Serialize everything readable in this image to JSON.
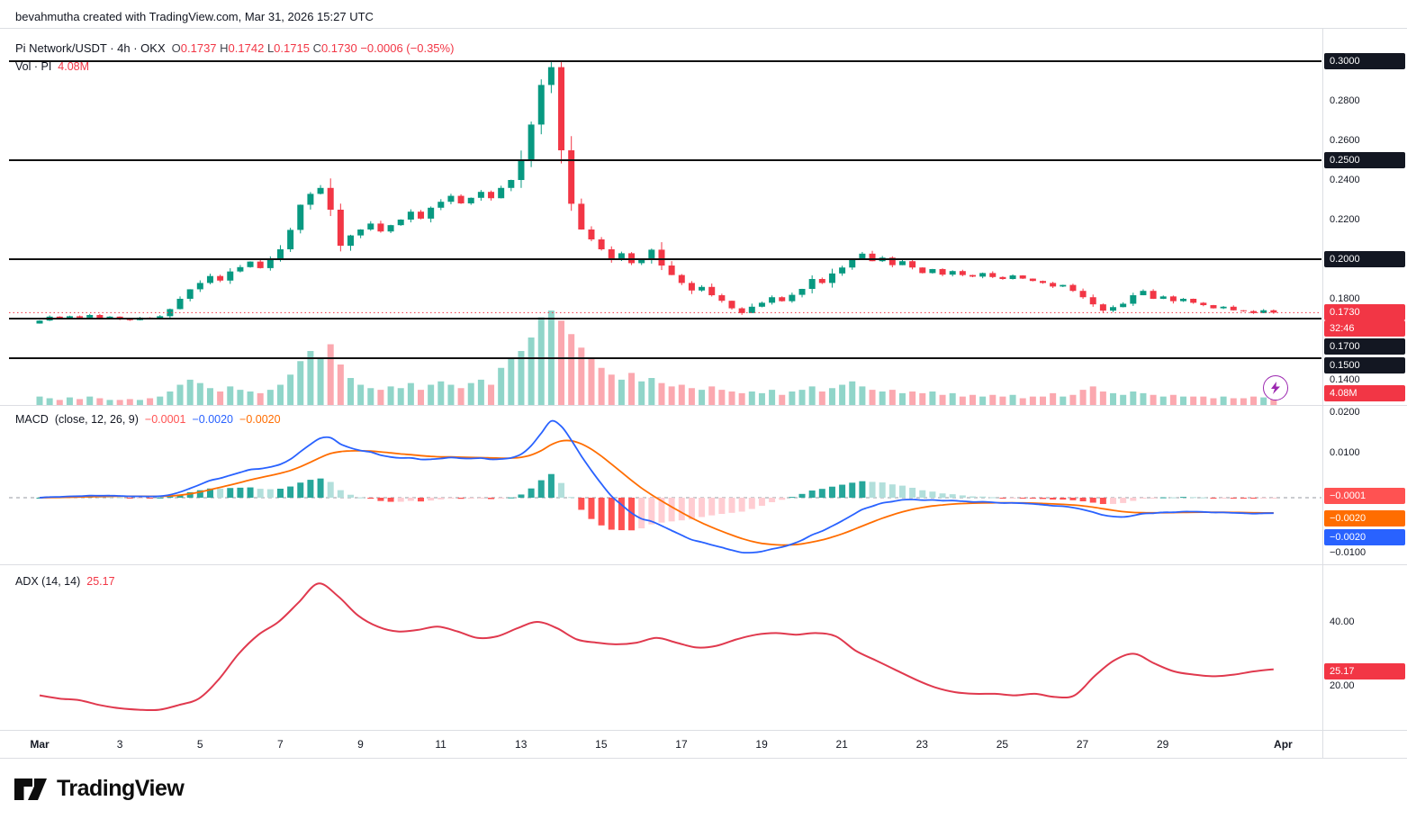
{
  "attribution": "bevahmutha created with TradingView.com, Mar 31, 2026 15:27 UTC",
  "header": {
    "title": "Pi Network/USDT · 4h · OKX",
    "ohlc": {
      "o_label": "O",
      "o": "0.1737",
      "h_label": "H",
      "h": "0.1742",
      "l_label": "L",
      "l": "0.1715",
      "c_label": "C",
      "c": "0.1730",
      "change": "−0.0006 (−0.35%)"
    },
    "volume": {
      "label": "Vol · PI",
      "value": "4.08M"
    }
  },
  "macd_legend": {
    "title": "MACD",
    "params": "(close, 12, 26, 9)",
    "hist_value": "−0.0001",
    "macd_value": "−0.0020",
    "signal_value": "−0.0020"
  },
  "adx_legend": {
    "title": "ADX (14, 14)",
    "value": "25.17"
  },
  "footer": {
    "brand": "TradingView"
  },
  "right_axis": [
    {
      "text": "0.3000",
      "y": 68,
      "style": "black"
    },
    {
      "text": "0.2800",
      "y": 112,
      "style": "plain"
    },
    {
      "text": "0.2600",
      "y": 156,
      "style": "plain"
    },
    {
      "text": "0.2500",
      "y": 178,
      "style": "black"
    },
    {
      "text": "0.2400",
      "y": 200,
      "style": "plain"
    },
    {
      "text": "0.2200",
      "y": 244,
      "style": "plain"
    },
    {
      "text": "0.2000",
      "y": 288,
      "style": "black"
    },
    {
      "text": "0.1800",
      "y": 332,
      "style": "plain"
    },
    {
      "text": "0.1730",
      "y": 347,
      "style": "red"
    },
    {
      "text": "32:46",
      "y": 365,
      "style": "red"
    },
    {
      "text": "0.1700",
      "y": 385,
      "style": "black"
    },
    {
      "text": "0.1500",
      "y": 406,
      "style": "black"
    },
    {
      "text": "0.1400",
      "y": 422,
      "style": "plain"
    },
    {
      "text": "4.08M",
      "y": 437,
      "style": "red"
    },
    {
      "text": "0.0200",
      "y": 458,
      "style": "plain"
    },
    {
      "text": "0.0100",
      "y": 503,
      "style": "plain"
    },
    {
      "text": "−0.0001",
      "y": 551,
      "style": "pink"
    },
    {
      "text": "−0.0020",
      "y": 576,
      "style": "orange"
    },
    {
      "text": "−0.0020",
      "y": 597,
      "style": "blue"
    },
    {
      "text": "−0.0100",
      "y": 614,
      "style": "plain"
    },
    {
      "text": "40.00",
      "y": 691,
      "style": "plain"
    },
    {
      "text": "25.17",
      "y": 746,
      "style": "red"
    },
    {
      "text": "20.00",
      "y": 762,
      "style": "plain"
    }
  ],
  "x_axis": [
    {
      "text": "Mar",
      "day": 1,
      "bold": true
    },
    {
      "text": "3",
      "day": 3,
      "bold": false
    },
    {
      "text": "5",
      "day": 5,
      "bold": false
    },
    {
      "text": "7",
      "day": 7,
      "bold": false
    },
    {
      "text": "9",
      "day": 9,
      "bold": false
    },
    {
      "text": "11",
      "day": 11,
      "bold": false
    },
    {
      "text": "13",
      "day": 13,
      "bold": false
    },
    {
      "text": "15",
      "day": 15,
      "bold": false
    },
    {
      "text": "17",
      "day": 17,
      "bold": false
    },
    {
      "text": "19",
      "day": 19,
      "bold": false
    },
    {
      "text": "21",
      "day": 21,
      "bold": false
    },
    {
      "text": "23",
      "day": 23,
      "bold": false
    },
    {
      "text": "25",
      "day": 25,
      "bold": false
    },
    {
      "text": "27",
      "day": 27,
      "bold": false
    },
    {
      "text": "29",
      "day": 29,
      "bold": false
    },
    {
      "text": "Apr",
      "day": 32,
      "bold": true
    }
  ],
  "colors": {
    "up": "#089981",
    "down": "#f23645",
    "vol_up": "rgba(34,171,148,0.5)",
    "vol_down": "rgba(247,82,95,0.5)",
    "macd_line": "#2962ff",
    "signal_line": "#ff6d00",
    "hist_pos": "#26a69a",
    "hist_pos_fade": "#b2dfdb",
    "hist_neg": "#ff5252",
    "hist_neg_fade": "#ffcdd2",
    "adx_line": "#e0394e",
    "level_line": "#111111",
    "last_price": "#f23645",
    "separator": "#dcdee3",
    "zero_dash": "#9598a1"
  },
  "chart_data": {
    "type": "candlestick",
    "symbol": "Pi Network/USDT",
    "interval": "4h",
    "exchange": "OKX",
    "current": {
      "open": 0.1737,
      "high": 0.1742,
      "low": 0.1715,
      "close": 0.173,
      "change": -0.0006,
      "change_pct": -0.35,
      "volume": "4.08M",
      "countdown": "32:46"
    },
    "price_levels_drawn": [
      0.3,
      0.25,
      0.2,
      0.17,
      0.15
    ],
    "x_start": "Mar 1",
    "x_end": "Mar 31",
    "candles_per_day": 4,
    "first_open": 0.1675,
    "closes": [
      0.169,
      0.171,
      0.17,
      0.1712,
      0.1705,
      0.1718,
      0.1702,
      0.171,
      0.1698,
      0.1692,
      0.1705,
      0.17,
      0.1712,
      0.1748,
      0.18,
      0.1848,
      0.188,
      0.1915,
      0.1892,
      0.1938,
      0.196,
      0.1988,
      0.1955,
      0.1998,
      0.205,
      0.2148,
      0.2275,
      0.233,
      0.236,
      0.225,
      0.2068,
      0.212,
      0.215,
      0.218,
      0.214,
      0.2172,
      0.22,
      0.224,
      0.2205,
      0.226,
      0.229,
      0.232,
      0.2282,
      0.231,
      0.234,
      0.2308,
      0.236,
      0.24,
      0.25,
      0.268,
      0.288,
      0.297,
      0.255,
      0.228,
      0.215,
      0.21,
      0.205,
      0.2,
      0.203,
      0.198,
      0.2,
      0.2048,
      0.1968,
      0.192,
      0.188,
      0.1842,
      0.186,
      0.1818,
      0.179,
      0.1752,
      0.1728,
      0.176,
      0.178,
      0.1808,
      0.1788,
      0.182,
      0.185,
      0.19,
      0.188,
      0.1928,
      0.1958,
      0.2,
      0.2028,
      0.199,
      0.2008,
      0.197,
      0.199,
      0.1958,
      0.193,
      0.195,
      0.1922,
      0.194,
      0.192,
      0.1912,
      0.193,
      0.191,
      0.19,
      0.1918,
      0.1902,
      0.189,
      0.188,
      0.1862,
      0.187,
      0.184,
      0.1808,
      0.1772,
      0.174,
      0.1758,
      0.1775,
      0.1818,
      0.184,
      0.18,
      0.1812,
      0.1788,
      0.18,
      0.178,
      0.1768,
      0.1752,
      0.176,
      0.1742,
      0.1738,
      0.1728,
      0.1742,
      0.173
    ],
    "volumes_millions": [
      5,
      4,
      3,
      4.5,
      3.5,
      5,
      4,
      3,
      3,
      3.5,
      3,
      4,
      5,
      8,
      12,
      15,
      13,
      10,
      8,
      11,
      9,
      8,
      7,
      9,
      12,
      18,
      26,
      32,
      28,
      36,
      24,
      16,
      12,
      10,
      9,
      11,
      10,
      13,
      9,
      12,
      14,
      12,
      10,
      13,
      15,
      12,
      22,
      28,
      32,
      40,
      52,
      56,
      50,
      42,
      34,
      28,
      22,
      18,
      15,
      19,
      14,
      16,
      13,
      11,
      12,
      10,
      9,
      11,
      9,
      8,
      7,
      8,
      7,
      9,
      6,
      8,
      9,
      11,
      8,
      10,
      12,
      14,
      11,
      9,
      8,
      9,
      7,
      8,
      7,
      8,
      6,
      7,
      5,
      6,
      5,
      6,
      5,
      6,
      4,
      5,
      5,
      7,
      5,
      6,
      9,
      11,
      8,
      7,
      6,
      8,
      7,
      6,
      5,
      6,
      5,
      5,
      5,
      4,
      5,
      4,
      4,
      5,
      4.5,
      4.08
    ],
    "indicators": {
      "macd": {
        "source": "close",
        "fast": 12,
        "slow": 26,
        "signal": 9,
        "current_hist": -0.0001,
        "current_macd": -0.002,
        "current_signal": -0.002
      },
      "adx": {
        "length": 14,
        "smoothing": 14,
        "current": 25.17,
        "series": [
          17,
          16,
          15.5,
          14,
          13,
          12.5,
          12.5,
          14,
          16,
          22,
          30,
          36,
          40,
          46,
          52,
          48,
          42,
          38.5,
          37,
          37.5,
          38.5,
          37,
          35,
          35.5,
          38,
          40,
          38,
          34.5,
          33.5,
          33,
          33.5,
          35,
          33.5,
          32,
          32.5,
          34.5,
          36,
          36.5,
          36,
          36.5,
          35.5,
          31,
          28,
          25,
          22,
          19.5,
          18,
          17.5,
          17.5,
          17,
          17.5,
          16.5,
          17,
          23,
          28,
          30,
          27,
          24.5,
          23.5,
          23,
          23.5,
          24.5,
          25.17
        ]
      }
    },
    "price_axis_ticks": [
      "0.3000",
      "0.2800",
      "0.2600",
      "0.2500",
      "0.2400",
      "0.2200",
      "0.2000",
      "0.1800",
      "0.1700",
      "0.1500",
      "0.1400"
    ],
    "macd_axis_ticks": [
      "0.0200",
      "0.0100",
      "−0.0100"
    ],
    "adx_axis_ticks": [
      "40.00",
      "20.00"
    ]
  }
}
